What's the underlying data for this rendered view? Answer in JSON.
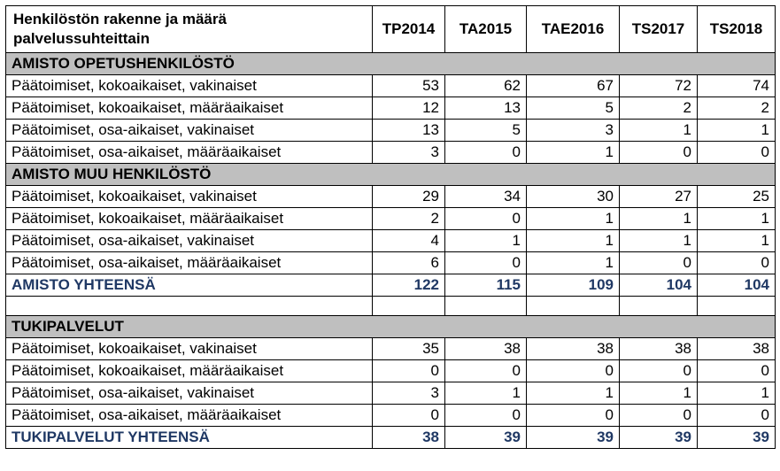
{
  "header": {
    "label": "Henkilöstön rakenne ja määrä palvelussuhteittain",
    "cols": [
      "TP2014",
      "TA2015",
      "TAE2016",
      "TS2017",
      "TS2018"
    ]
  },
  "colors": {
    "section_bg": "#bfbfbf",
    "total_text": "#1f3864",
    "border": "#000000",
    "bg": "#ffffff"
  },
  "sections": [
    {
      "title": "AMISTO OPETUSHENKILÖSTÖ",
      "rows": [
        {
          "label": "Päätoimiset, kokoaikaiset, vakinaiset",
          "v": [
            53,
            62,
            67,
            72,
            74
          ]
        },
        {
          "label": "Päätoimiset, kokoaikaiset, määräaikaiset",
          "v": [
            12,
            13,
            5,
            2,
            2
          ]
        },
        {
          "label": "Päätoimiset, osa-aikaiset, vakinaiset",
          "v": [
            13,
            5,
            3,
            1,
            1
          ]
        },
        {
          "label": "Päätoimiset, osa-aikaiset, määräaikaiset",
          "v": [
            3,
            0,
            1,
            0,
            0
          ]
        }
      ]
    },
    {
      "title": "AMISTO MUU HENKILÖSTÖ",
      "rows": [
        {
          "label": "Päätoimiset, kokoaikaiset, vakinaiset",
          "v": [
            29,
            34,
            30,
            27,
            25
          ]
        },
        {
          "label": "Päätoimiset, kokoaikaiset, määräaikaiset",
          "v": [
            2,
            0,
            1,
            1,
            1
          ]
        },
        {
          "label": "Päätoimiset, osa-aikaiset, vakinaiset",
          "v": [
            4,
            1,
            1,
            1,
            1
          ]
        },
        {
          "label": "Päätoimiset, osa-aikaiset, määräaikaiset",
          "v": [
            6,
            0,
            1,
            0,
            0
          ]
        }
      ],
      "total": {
        "label": "AMISTO YHTEENSÄ",
        "v": [
          122,
          115,
          109,
          104,
          104
        ]
      },
      "blank_after": true
    },
    {
      "title": "TUKIPALVELUT",
      "rows": [
        {
          "label": "Päätoimiset, kokoaikaiset, vakinaiset",
          "v": [
            35,
            38,
            38,
            38,
            38
          ]
        },
        {
          "label": "Päätoimiset, kokoaikaiset, määräaikaiset",
          "v": [
            0,
            0,
            0,
            0,
            0
          ]
        },
        {
          "label": "Päätoimiset, osa-aikaiset, vakinaiset",
          "v": [
            3,
            1,
            1,
            1,
            1
          ]
        },
        {
          "label": "Päätoimiset, osa-aikaiset, määräaikaiset",
          "v": [
            0,
            0,
            0,
            0,
            0
          ]
        }
      ],
      "total": {
        "label": "TUKIPALVELUT YHTEENSÄ",
        "v": [
          38,
          39,
          39,
          39,
          39
        ]
      }
    }
  ]
}
